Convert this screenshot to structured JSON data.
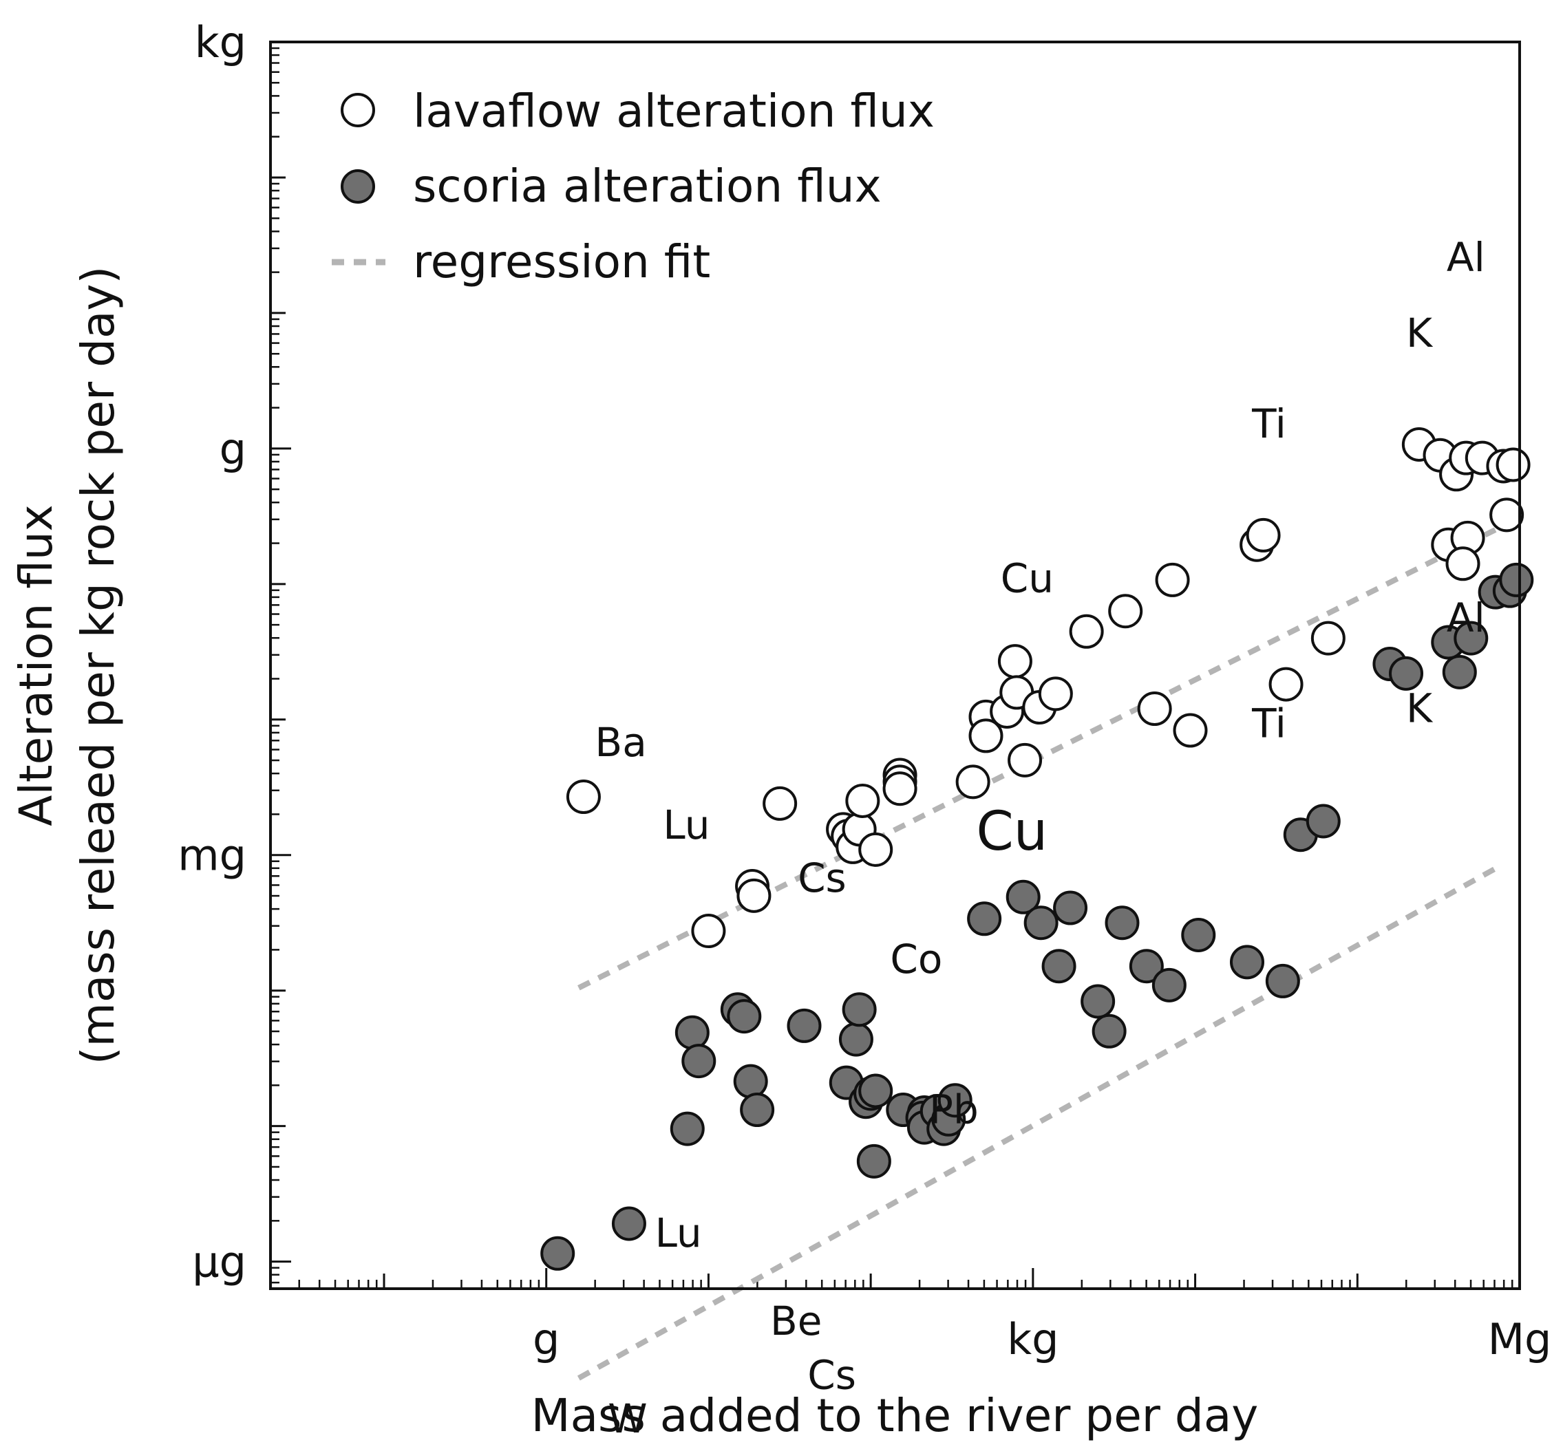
{
  "chart_data": {
    "type": "scatter",
    "xlabel": "Mass added to the river per day",
    "ylabel": "Alteration flux",
    "ylabel2": "(mass releaed per kg rock per day)",
    "x_scale": "log10",
    "y_scale": "log10",
    "xlim": [
      -4.7,
      3.0
    ],
    "ylim": [
      -9.2,
      0.0
    ],
    "x_ticks": [
      {
        "value": -3,
        "label": "g"
      },
      {
        "value": 0,
        "label": "kg"
      },
      {
        "value": 3,
        "label": "Mg"
      }
    ],
    "y_ticks": [
      {
        "value": -9,
        "label": "μg"
      },
      {
        "value": -6,
        "label": "mg"
      },
      {
        "value": -3,
        "label": "g"
      },
      {
        "value": 0,
        "label": "kg"
      }
    ],
    "legend": [
      {
        "name": "lavaflow alteration flux",
        "marker": "open-circle"
      },
      {
        "name": "scoria alteration flux",
        "marker": "filled-circle"
      },
      {
        "name": "regression fit",
        "marker": "dashed-line"
      }
    ],
    "colors": {
      "scoria_fill": "#6f6f6f",
      "regression": "#b4b4b4",
      "outline": "#111111"
    },
    "series": [
      {
        "name": "lavaflow alteration flux",
        "points": [
          [
            -2.77,
            -5.57
          ],
          [
            -2.0,
            -6.56
          ],
          [
            -1.73,
            -6.23
          ],
          [
            -1.72,
            -6.3
          ],
          [
            -1.56,
            -5.62
          ],
          [
            -1.17,
            -5.81
          ],
          [
            -1.14,
            -5.86
          ],
          [
            -1.11,
            -5.94
          ],
          [
            -1.07,
            -5.81
          ],
          [
            -0.97,
            -5.96
          ],
          [
            -0.82,
            -5.41
          ],
          [
            -0.82,
            -5.46
          ],
          [
            -0.82,
            -5.51
          ],
          [
            -1.05,
            -5.6
          ],
          [
            -0.37,
            -5.46
          ],
          [
            -0.29,
            -4.98
          ],
          [
            -0.29,
            -5.12
          ],
          [
            -0.16,
            -4.94
          ],
          [
            -0.05,
            -5.3
          ],
          [
            -0.11,
            -4.57
          ],
          [
            -0.1,
            -4.8
          ],
          [
            0.04,
            -4.91
          ],
          [
            0.14,
            -4.81
          ],
          [
            0.33,
            -4.35
          ],
          [
            0.57,
            -4.2
          ],
          [
            0.75,
            -4.92
          ],
          [
            0.86,
            -3.97
          ],
          [
            0.97,
            -5.08
          ],
          [
            1.38,
            -3.71
          ],
          [
            1.42,
            -3.64
          ],
          [
            1.56,
            -4.74
          ],
          [
            1.82,
            -4.4
          ],
          [
            2.38,
            -2.97
          ],
          [
            2.51,
            -3.05
          ],
          [
            2.56,
            -3.71
          ],
          [
            2.61,
            -3.19
          ],
          [
            2.68,
            -3.66
          ],
          [
            2.65,
            -3.85
          ],
          [
            2.67,
            -3.07
          ],
          [
            2.77,
            -3.07
          ],
          [
            2.9,
            -3.13
          ],
          [
            2.96,
            -3.12
          ],
          [
            2.92,
            -3.49
          ]
        ]
      },
      {
        "name": "scoria alteration flux",
        "points": [
          [
            -2.93,
            -8.94
          ],
          [
            -2.49,
            -8.72
          ],
          [
            -2.13,
            -8.02
          ],
          [
            -2.1,
            -7.31
          ],
          [
            -2.06,
            -7.52
          ],
          [
            -1.82,
            -7.14
          ],
          [
            -1.78,
            -7.19
          ],
          [
            -1.74,
            -7.67
          ],
          [
            -1.7,
            -7.88
          ],
          [
            -1.41,
            -7.26
          ],
          [
            -1.15,
            -7.68
          ],
          [
            -1.09,
            -7.36
          ],
          [
            -1.07,
            -7.14
          ],
          [
            -1.03,
            -7.82
          ],
          [
            -1.0,
            -7.76
          ],
          [
            -0.97,
            -7.74
          ],
          [
            -0.98,
            -8.26
          ],
          [
            -0.8,
            -7.88
          ],
          [
            -0.67,
            -7.9
          ],
          [
            -0.68,
            -7.94
          ],
          [
            -0.67,
            -8.01
          ],
          [
            -0.59,
            -7.89
          ],
          [
            -0.55,
            -8.02
          ],
          [
            -0.52,
            -7.95
          ],
          [
            -0.48,
            -7.81
          ],
          [
            -0.3,
            -6.47
          ],
          [
            -0.06,
            -6.31
          ],
          [
            0.05,
            -6.5
          ],
          [
            0.16,
            -6.82
          ],
          [
            0.23,
            -6.39
          ],
          [
            0.4,
            -7.08
          ],
          [
            0.47,
            -7.3
          ],
          [
            0.55,
            -6.5
          ],
          [
            0.7,
            -6.82
          ],
          [
            0.84,
            -6.96
          ],
          [
            1.02,
            -6.59
          ],
          [
            1.32,
            -6.79
          ],
          [
            1.54,
            -6.93
          ],
          [
            1.65,
            -5.85
          ],
          [
            1.79,
            -5.75
          ],
          [
            2.2,
            -4.59
          ],
          [
            2.3,
            -4.66
          ],
          [
            2.56,
            -4.43
          ],
          [
            2.63,
            -4.65
          ],
          [
            2.7,
            -4.4
          ],
          [
            2.85,
            -4.06
          ],
          [
            2.94,
            -4.05
          ],
          [
            2.98,
            -3.97
          ]
        ]
      }
    ],
    "regression": [
      {
        "name": "lavaflow regression fit",
        "from": [
          -2.8,
          -6.98
        ],
        "to": [
          2.85,
          -3.6
        ]
      },
      {
        "name": "scoria regression fit",
        "from": [
          -2.8,
          -9.86
        ],
        "to": [
          2.85,
          -6.1
        ]
      }
    ],
    "annotations": [
      {
        "text": "Ba",
        "x": -2.7,
        "y": -5.27
      },
      {
        "text": "Lu",
        "x": -2.28,
        "y": -5.88
      },
      {
        "text": "Cs",
        "x": -1.45,
        "y": -6.27
      },
      {
        "text": "Cu",
        "x": -0.2,
        "y": -4.06
      },
      {
        "text": "Ti",
        "x": 1.35,
        "y": -2.92
      },
      {
        "text": "K",
        "x": 2.3,
        "y": -2.25
      },
      {
        "text": "Al",
        "x": 2.55,
        "y": -1.69
      },
      {
        "text": "Cu",
        "x": -0.35,
        "y": -5.96,
        "big": true
      },
      {
        "text": "Co",
        "x": -0.88,
        "y": -6.87
      },
      {
        "text": "Ti",
        "x": 1.35,
        "y": -5.13
      },
      {
        "text": "K",
        "x": 2.3,
        "y": -5.02
      },
      {
        "text": "Al",
        "x": 2.55,
        "y": -4.35
      },
      {
        "text": "Lu",
        "x": -2.33,
        "y": -8.89
      },
      {
        "text": "Pb",
        "x": -0.64,
        "y": -7.98
      },
      {
        "text": "Be",
        "x": -1.62,
        "y": -9.54
      },
      {
        "text": "Cs",
        "x": -1.39,
        "y": -9.94
      },
      {
        "text": "W",
        "x": -2.62,
        "y": -10.26
      }
    ]
  }
}
